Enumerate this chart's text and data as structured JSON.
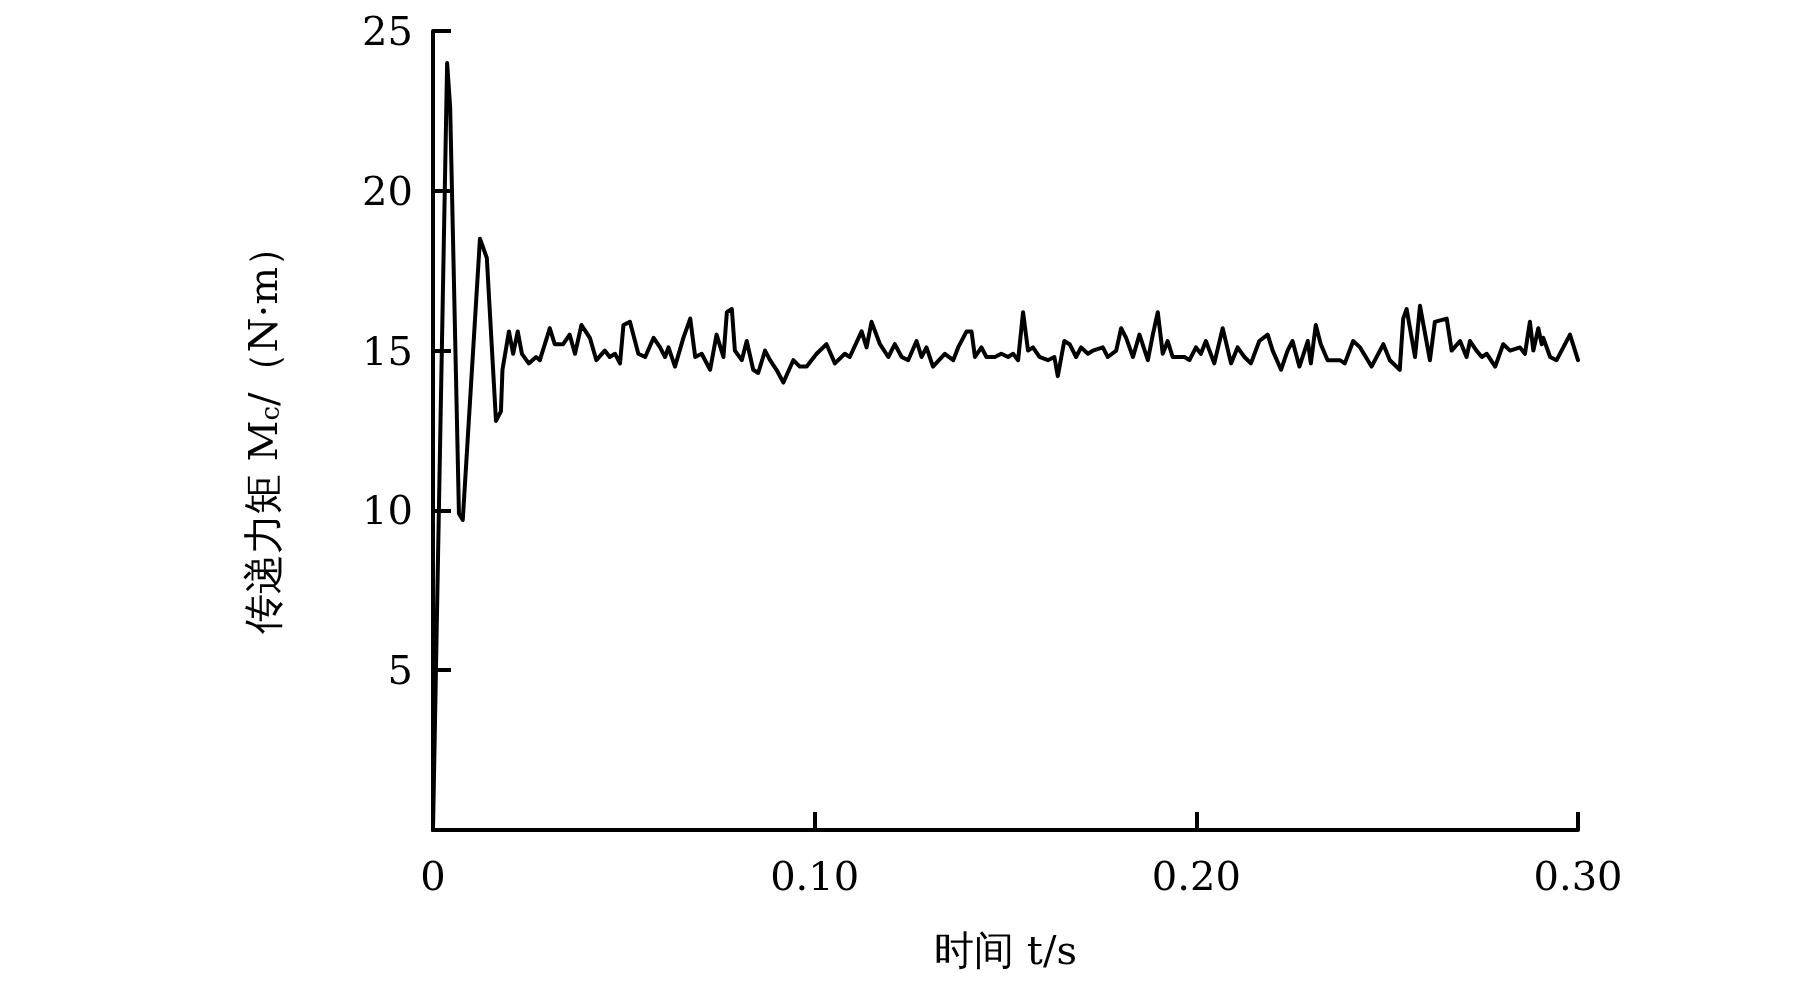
{
  "chart_data": {
    "type": "line",
    "xlabel": "时间 t/s",
    "ylabel": "传递力矩 M$_{c}$/（N·m）",
    "xlim": [
      0,
      0.3
    ],
    "xticks": [
      0,
      {
        "value": 0.1,
        "label": "0.10"
      },
      {
        "value": 0.2,
        "label": "0.20"
      },
      {
        "value": 0.3,
        "label": "0.30"
      }
    ],
    "ylim": [
      0,
      25
    ],
    "yticks": [
      5,
      10,
      15,
      20,
      25
    ],
    "grid": false,
    "marker": "none",
    "line_style": "solid",
    "series": [
      {
        "color": "#000000",
        "x": [
          0,
          0.0037,
          0.0045,
          0.0068,
          0.0078,
          0.0123,
          0.0141,
          0.0165,
          0.0178,
          0.0182,
          0.0199,
          0.021,
          0.0222,
          0.0233,
          0.0251,
          0.027,
          0.028,
          0.0306,
          0.0319,
          0.0341,
          0.0358,
          0.0372,
          0.0389,
          0.0411,
          0.0428,
          0.045,
          0.0463,
          0.0477,
          0.049,
          0.0499,
          0.0516,
          0.0538,
          0.0556,
          0.0578,
          0.0595,
          0.0608,
          0.0617,
          0.0634,
          0.0656,
          0.0674,
          0.0687,
          0.0704,
          0.0726,
          0.0743,
          0.0761,
          0.077,
          0.0783,
          0.0791,
          0.0809,
          0.0822,
          0.0839,
          0.0852,
          0.087,
          0.0883,
          0.09,
          0.0918,
          0.0944,
          0.0961,
          0.0979,
          0.1005,
          0.1031,
          0.1053,
          0.1079,
          0.1092,
          0.1123,
          0.1136,
          0.1149,
          0.1171,
          0.1193,
          0.121,
          0.1228,
          0.1245,
          0.1267,
          0.128,
          0.1293,
          0.131,
          0.1341,
          0.1363,
          0.1376,
          0.1398,
          0.1411,
          0.142,
          0.1437,
          0.145,
          0.1472,
          0.1489,
          0.1507,
          0.152,
          0.1533,
          0.1546,
          0.1559,
          0.1572,
          0.1589,
          0.1611,
          0.1628,
          0.1637,
          0.1654,
          0.1668,
          0.1685,
          0.1698,
          0.1716,
          0.1729,
          0.1755,
          0.1768,
          0.179,
          0.1803,
          0.1816,
          0.1834,
          0.1851,
          0.1873,
          0.1886,
          0.1899,
          0.1912,
          0.1925,
          0.1938,
          0.1969,
          0.1982,
          0.1999,
          0.2012,
          0.2025,
          0.2047,
          0.2069,
          0.2091,
          0.2108,
          0.2126,
          0.2143,
          0.2165,
          0.2187,
          0.22,
          0.2222,
          0.2239,
          0.2252,
          0.227,
          0.2292,
          0.23,
          0.2313,
          0.2326,
          0.2344,
          0.2359,
          0.2376,
          0.2389,
          0.2411,
          0.2429,
          0.2459,
          0.249,
          0.2507,
          0.2533,
          0.2542,
          0.2551,
          0.2573,
          0.2586,
          0.2612,
          0.2625,
          0.2656,
          0.2669,
          0.2691,
          0.2708,
          0.2717,
          0.2734,
          0.2748,
          0.2761,
          0.2783,
          0.2804,
          0.2822,
          0.2848,
          0.2861,
          0.2874,
          0.2883,
          0.2896,
          0.2905,
          0.2909,
          0.2927,
          0.2944,
          0.2979,
          0.3
        ],
        "values": [
          0,
          24,
          22.6,
          9.9,
          9.7,
          18.5,
          17.9,
          12.8,
          13.1,
          14.4,
          15.6,
          14.9,
          15.6,
          14.9,
          14.6,
          14.8,
          14.7,
          15.7,
          15.2,
          15.2,
          15.5,
          14.9,
          15.8,
          15.4,
          14.7,
          15,
          14.8,
          14.9,
          14.6,
          15.8,
          15.9,
          14.9,
          14.8,
          15.4,
          15.1,
          14.8,
          15.1,
          14.5,
          15.4,
          16,
          14.8,
          14.9,
          14.4,
          15.5,
          14.8,
          16.2,
          16.3,
          15,
          14.7,
          15.3,
          14.4,
          14.3,
          15,
          14.7,
          14.4,
          14,
          14.7,
          14.5,
          14.5,
          14.9,
          15.2,
          14.6,
          14.9,
          14.8,
          15.6,
          15.1,
          15.9,
          15.2,
          14.8,
          15.2,
          14.8,
          14.7,
          15.3,
          14.8,
          15.1,
          14.5,
          14.9,
          14.7,
          15.1,
          15.6,
          15.6,
          14.8,
          15.1,
          14.8,
          14.8,
          14.9,
          14.8,
          14.9,
          14.7,
          16.2,
          15,
          15.1,
          14.8,
          14.7,
          14.8,
          14.2,
          15.3,
          15.2,
          14.8,
          15.1,
          14.9,
          15,
          15.1,
          14.8,
          15,
          15.7,
          15.4,
          14.8,
          15.5,
          14.7,
          15.5,
          16.2,
          14.9,
          15.3,
          14.8,
          14.8,
          14.7,
          15.1,
          14.9,
          15.3,
          14.6,
          15.7,
          14.6,
          15.1,
          14.8,
          14.6,
          15.3,
          15.5,
          15,
          14.4,
          15,
          15.3,
          14.5,
          15.3,
          14.6,
          15.8,
          15.2,
          14.7,
          14.7,
          14.7,
          14.6,
          15.3,
          15.1,
          14.5,
          15.2,
          14.7,
          14.4,
          16,
          16.3,
          14.8,
          16.4,
          14.7,
          15.9,
          16,
          15,
          15.3,
          14.8,
          15.3,
          15,
          14.8,
          14.9,
          14.5,
          15.2,
          15,
          15.1,
          14.9,
          15.9,
          15,
          15.7,
          15.2,
          15.4,
          14.8,
          14.7,
          15.5,
          14.7
        ]
      }
    ]
  }
}
